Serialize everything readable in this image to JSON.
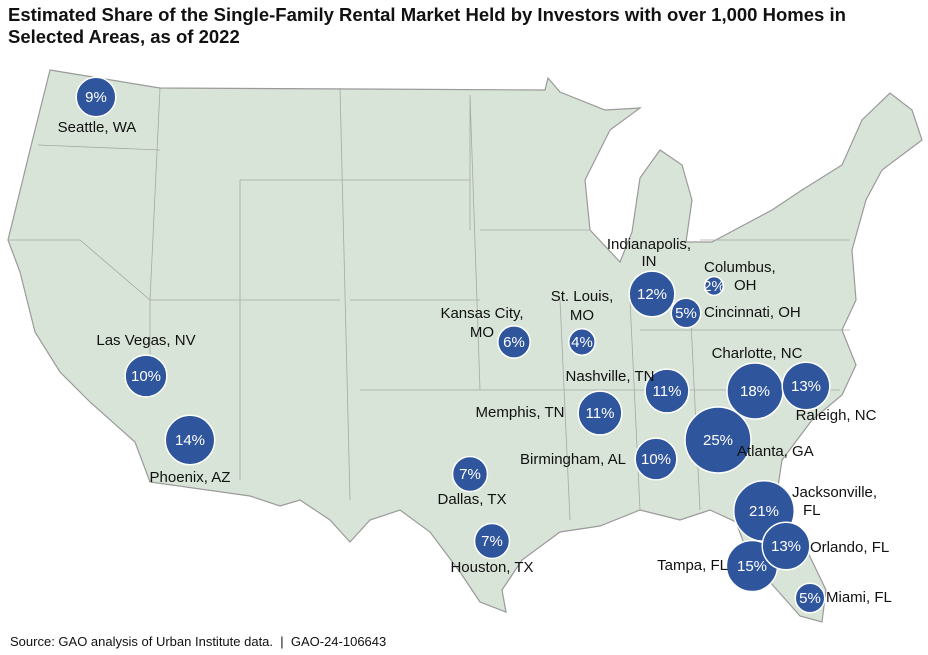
{
  "title": "Estimated Share of the Single-Family Rental Market Held by Investors with over 1,000 Homes in Selected Areas, as of 2022",
  "source": "Source: GAO analysis of Urban Institute data.  |  GAO-24-106643",
  "bubble_color": "#2f559c",
  "cities": [
    {
      "name": "Seattle, WA",
      "value": 9,
      "value_label": "9%"
    },
    {
      "name": "Las Vegas, NV",
      "value": 10,
      "value_label": "10%"
    },
    {
      "name": "Phoenix, AZ",
      "value": 14,
      "value_label": "14%"
    },
    {
      "name": "Kansas City, MO",
      "value": 6,
      "value_label": "6%"
    },
    {
      "name": "St. Louis, MO",
      "value": 4,
      "value_label": "4%"
    },
    {
      "name": "Indianapolis, IN",
      "value": 12,
      "value_label": "12%"
    },
    {
      "name": "Columbus, OH",
      "value": 2,
      "value_label": "2%"
    },
    {
      "name": "Cincinnati, OH",
      "value": 5,
      "value_label": "5%"
    },
    {
      "name": "Nashville, TN",
      "value": 11,
      "value_label": "11%"
    },
    {
      "name": "Charlotte, NC",
      "value": 18,
      "value_label": "18%"
    },
    {
      "name": "Raleigh, NC",
      "value": 13,
      "value_label": "13%"
    },
    {
      "name": "Memphis, TN",
      "value": 11,
      "value_label": "11%"
    },
    {
      "name": "Atlanta, GA",
      "value": 25,
      "value_label": "25%"
    },
    {
      "name": "Birmingham, AL",
      "value": 10,
      "value_label": "10%"
    },
    {
      "name": "Dallas, TX",
      "value": 7,
      "value_label": "7%"
    },
    {
      "name": "Houston, TX",
      "value": 7,
      "value_label": "7%"
    },
    {
      "name": "Jacksonville, FL",
      "value": 21,
      "value_label": "21%"
    },
    {
      "name": "Orlando, FL",
      "value": 13,
      "value_label": "13%"
    },
    {
      "name": "Tampa, FL",
      "value": 15,
      "value_label": "15%"
    },
    {
      "name": "Miami, FL",
      "value": 5,
      "value_label": "5%"
    }
  ]
}
